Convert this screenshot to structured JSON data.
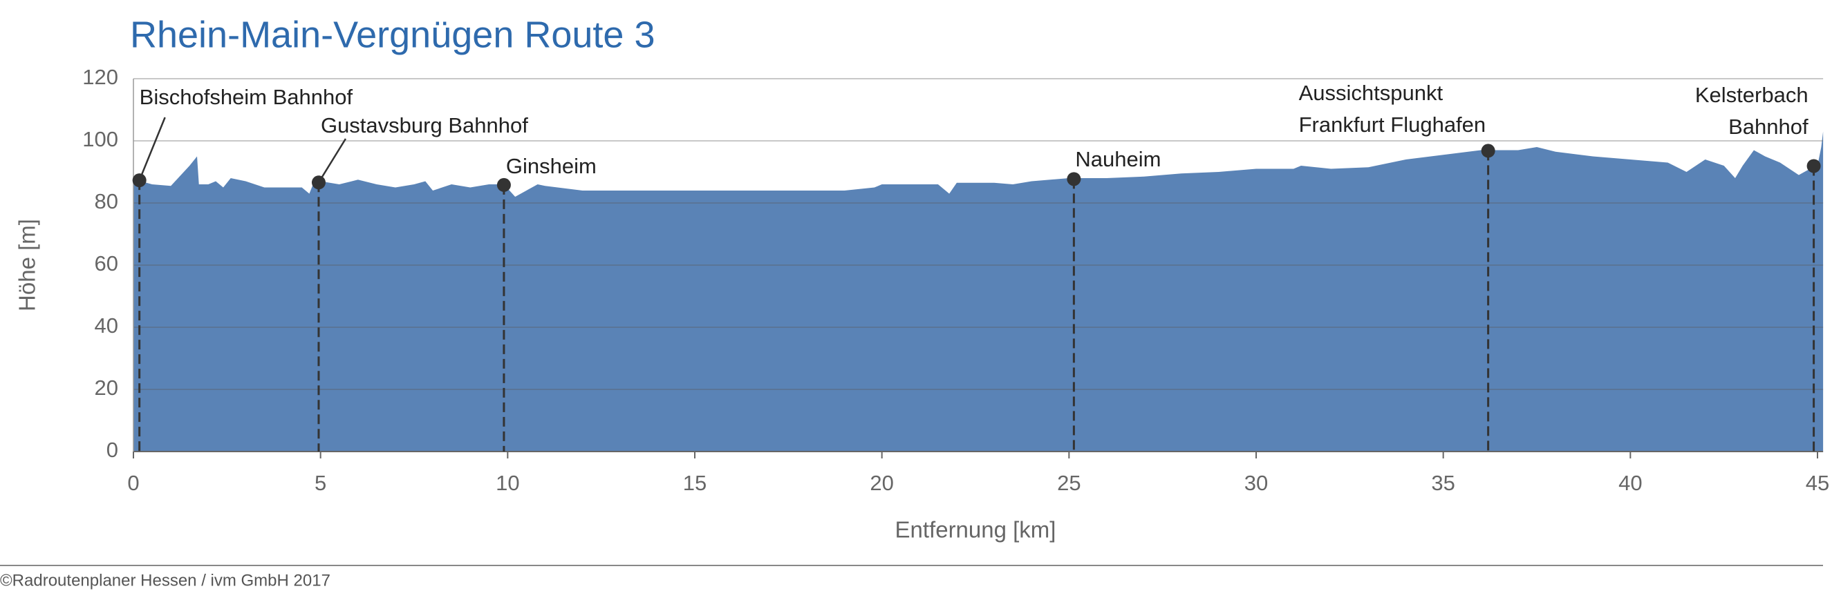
{
  "chart_data": {
    "type": "area",
    "title": "Rhein-Main-Vergnügen Route 3",
    "xlabel": "Entfernung [km]",
    "ylabel": "Höhe [m]",
    "footer": "©Radroutenplaner Hessen / ivm GmbH 2017",
    "color": "#5a83b6",
    "x": [
      0,
      0.2,
      0.5,
      1.0,
      1.5,
      1.7,
      1.75,
      2.0,
      2.2,
      2.4,
      2.6,
      3.0,
      3.5,
      4.5,
      4.7,
      4.8,
      5.0,
      5.5,
      6.0,
      6.5,
      7.0,
      7.5,
      7.8,
      8.0,
      8.5,
      9.0,
      9.5,
      9.9,
      10.2,
      10.5,
      10.8,
      11,
      12,
      13,
      14,
      15,
      16,
      17,
      18,
      19,
      19.8,
      20,
      21.5,
      21.8,
      22,
      23,
      23.5,
      24,
      25,
      26,
      27,
      27.5,
      28,
      29,
      30,
      31,
      31.2,
      32,
      33,
      34,
      35,
      36,
      36.5,
      37,
      37.5,
      38,
      39,
      40,
      41,
      41.5,
      42,
      42.5,
      42.8,
      43,
      43.3,
      43.6,
      44,
      44.5,
      44.8,
      45.0,
      45.1,
      45.15
    ],
    "values": [
      87,
      87,
      86,
      85.5,
      92,
      95,
      86,
      86,
      87,
      85,
      88,
      87,
      85,
      85,
      83,
      86,
      87,
      86,
      87.5,
      86,
      85,
      86,
      87,
      84,
      86,
      85,
      86,
      86,
      82,
      84,
      86,
      85.5,
      84,
      84,
      84,
      84,
      84,
      84,
      84,
      84,
      85,
      86,
      86,
      83,
      86.5,
      86.5,
      86,
      87,
      88,
      88,
      88.5,
      89,
      89.5,
      90,
      91,
      91,
      92,
      91,
      91.5,
      94,
      95.5,
      97,
      97,
      97,
      98,
      96.5,
      95,
      94,
      93,
      90,
      94,
      92,
      88,
      92,
      97,
      95,
      93,
      89,
      91,
      92,
      98,
      103
    ],
    "xlim": [
      0,
      45.15
    ],
    "ylim": [
      0,
      120
    ],
    "xticks": [
      0,
      5,
      10,
      15,
      20,
      25,
      30,
      35,
      40,
      45
    ],
    "yticks": [
      0,
      20,
      40,
      60,
      80,
      100,
      120
    ],
    "grid": true,
    "markers": [
      {
        "label": [
          "Bischofsheim Bahnhof"
        ],
        "x": 0.16,
        "y": 87.3
      },
      {
        "label": [
          "Gustavsburg Bahnhof"
        ],
        "x": 4.95,
        "y": 86.6
      },
      {
        "label": [
          "Ginsheim"
        ],
        "x": 9.9,
        "y": 85.8
      },
      {
        "label": [
          "Nauheim"
        ],
        "x": 25.13,
        "y": 87.7
      },
      {
        "label": [
          "Aussichtspunkt",
          "Frankfurt Flughafen"
        ],
        "x": 36.2,
        "y": 96.8
      },
      {
        "label": [
          "Kelsterbach",
          "Bahnhof"
        ],
        "x": 44.9,
        "y": 91.9
      }
    ]
  }
}
